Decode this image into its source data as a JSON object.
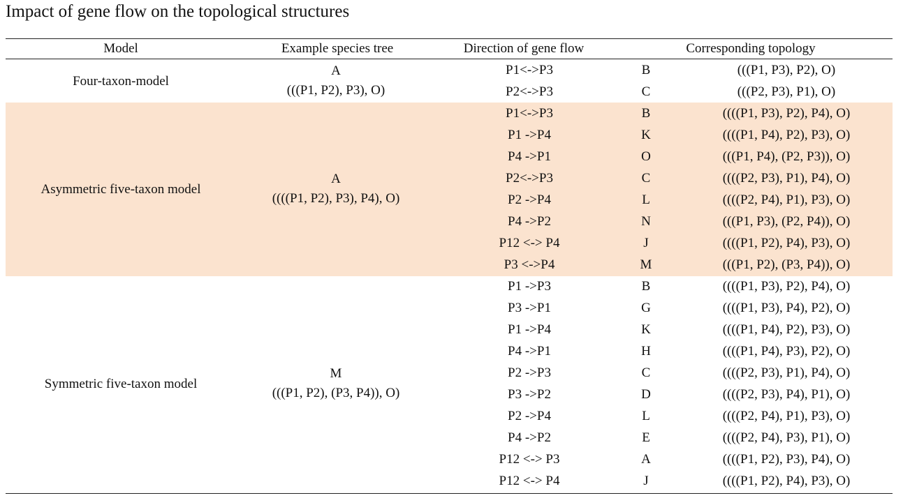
{
  "title": "Impact of gene flow on the topological structures",
  "colors": {
    "highlight": "#fbe3cf",
    "rule": "#222222",
    "text": "#111111"
  },
  "headers": [
    "Model",
    "Example species tree",
    "Direction of gene flow",
    "Corresponding topology"
  ],
  "groups": [
    {
      "model": "Four-taxon-model",
      "tree_label": "A",
      "tree": "(((P1, P2), P3), O)",
      "highlight": false,
      "rows": [
        {
          "flow": "P1<->P3",
          "code": "B",
          "topology": "(((P1, P3), P2), O)"
        },
        {
          "flow": "P2<->P3",
          "code": "C",
          "topology": "(((P2, P3), P1), O)"
        }
      ]
    },
    {
      "model": "Asymmetric five-taxon model",
      "tree_label": "A",
      "tree": "((((P1, P2), P3), P4), O)",
      "highlight": true,
      "rows": [
        {
          "flow": "P1<->P3",
          "code": "B",
          "topology": "((((P1, P3), P2), P4), O)"
        },
        {
          "flow": "P1 ->P4",
          "code": "K",
          "topology": "((((P1, P4), P2), P3), O)"
        },
        {
          "flow": "P4 ->P1",
          "code": "O",
          "topology": "(((P1, P4), (P2, P3)), O)"
        },
        {
          "flow": "P2<->P3",
          "code": "C",
          "topology": "((((P2, P3), P1), P4), O)"
        },
        {
          "flow": "P2 ->P4",
          "code": "L",
          "topology": "((((P2, P4), P1), P3), O)"
        },
        {
          "flow": "P4 ->P2",
          "code": "N",
          "topology": "(((P1, P3), (P2, P4)), O)"
        },
        {
          "flow": "P12 <-> P4",
          "code": "J",
          "topology": "((((P1, P2), P4), P3), O)"
        },
        {
          "flow": "P3 <->P4",
          "code": "M",
          "topology": "(((P1, P2), (P3, P4)), O)"
        }
      ]
    },
    {
      "model": "Symmetric five-taxon model",
      "tree_label": "M",
      "tree": "(((P1, P2), (P3, P4)), O)",
      "highlight": false,
      "rows": [
        {
          "flow": "P1 ->P3",
          "code": "B",
          "topology": "((((P1, P3), P2), P4), O)"
        },
        {
          "flow": "P3 ->P1",
          "code": "G",
          "topology": "((((P1, P3), P4), P2), O)"
        },
        {
          "flow": "P1 ->P4",
          "code": "K",
          "topology": "((((P1, P4), P2), P3), O)"
        },
        {
          "flow": "P4 ->P1",
          "code": "H",
          "topology": "((((P1, P4), P3), P2), O)"
        },
        {
          "flow": "P2 ->P3",
          "code": "C",
          "topology": "((((P2, P3), P1), P4), O)"
        },
        {
          "flow": "P3 ->P2",
          "code": "D",
          "topology": "((((P2, P3), P4), P1), O)"
        },
        {
          "flow": "P2 ->P4",
          "code": "L",
          "topology": "((((P2, P4), P1), P3), O)"
        },
        {
          "flow": "P4 ->P2",
          "code": "E",
          "topology": "((((P2, P4), P3), P1), O)"
        },
        {
          "flow": "P12 <-> P3",
          "code": "A",
          "topology": "((((P1, P2), P3), P4), O)"
        },
        {
          "flow": "P12 <-> P4",
          "code": "J",
          "topology": "((((P1, P2), P4), P3), O)"
        }
      ]
    }
  ]
}
